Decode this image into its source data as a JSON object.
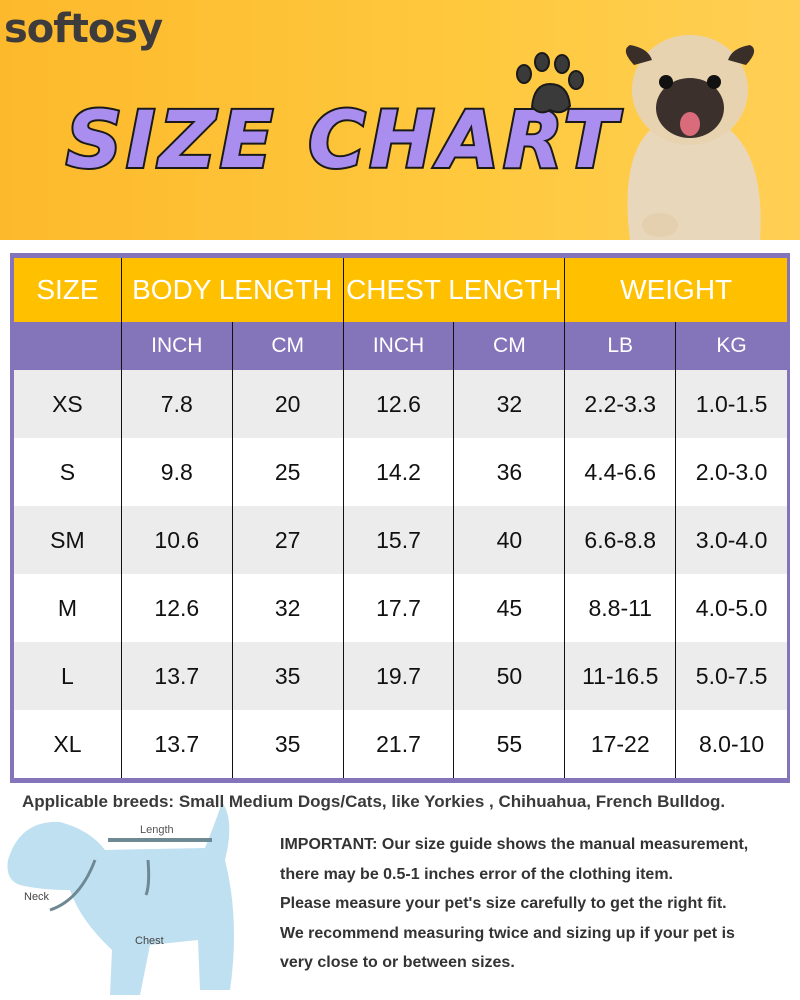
{
  "brand": "softosy",
  "title": "SIZE CHART",
  "colors": {
    "banner": "#fdb92c",
    "header": "#ffc000",
    "subheader": "#8475ba",
    "title": "#a98ef0"
  },
  "table": {
    "headers": [
      "SIZE",
      "BODY LENGTH",
      "CHEST LENGTH",
      "WEIGHT"
    ],
    "units": [
      "",
      "INCH",
      "CM",
      "INCH",
      "CM",
      "LB",
      "KG"
    ],
    "rows": [
      [
        "XS",
        "7.8",
        "20",
        "12.6",
        "32",
        "2.2-3.3",
        "1.0-1.5"
      ],
      [
        "S",
        "9.8",
        "25",
        "14.2",
        "36",
        "4.4-6.6",
        "2.0-3.0"
      ],
      [
        "SM",
        "10.6",
        "27",
        "15.7",
        "40",
        "6.6-8.8",
        "3.0-4.0"
      ],
      [
        "M",
        "12.6",
        "32",
        "17.7",
        "45",
        "8.8-11",
        "4.0-5.0"
      ],
      [
        "L",
        "13.7",
        "35",
        "19.7",
        "50",
        "11-16.5",
        "5.0-7.5"
      ],
      [
        "XL",
        "13.7",
        "35",
        "21.7",
        "55",
        "17-22",
        "8.0-10"
      ]
    ]
  },
  "breeds": "Applicable breeds: Small Medium Dogs/Cats, like Yorkies , Chihuahua, French Bulldog.",
  "diagram": {
    "length": "Length",
    "neck": "Neck",
    "chest": "Chest"
  },
  "important": [
    "IMPORTANT: Our size guide shows the manual measurement,",
    "there may be 0.5-1 inches error of the clothing item.",
    "Please measure your pet's size carefully to get the right fit.",
    "We recommend measuring twice and sizing up if your pet is",
    "very close to or between sizes."
  ]
}
